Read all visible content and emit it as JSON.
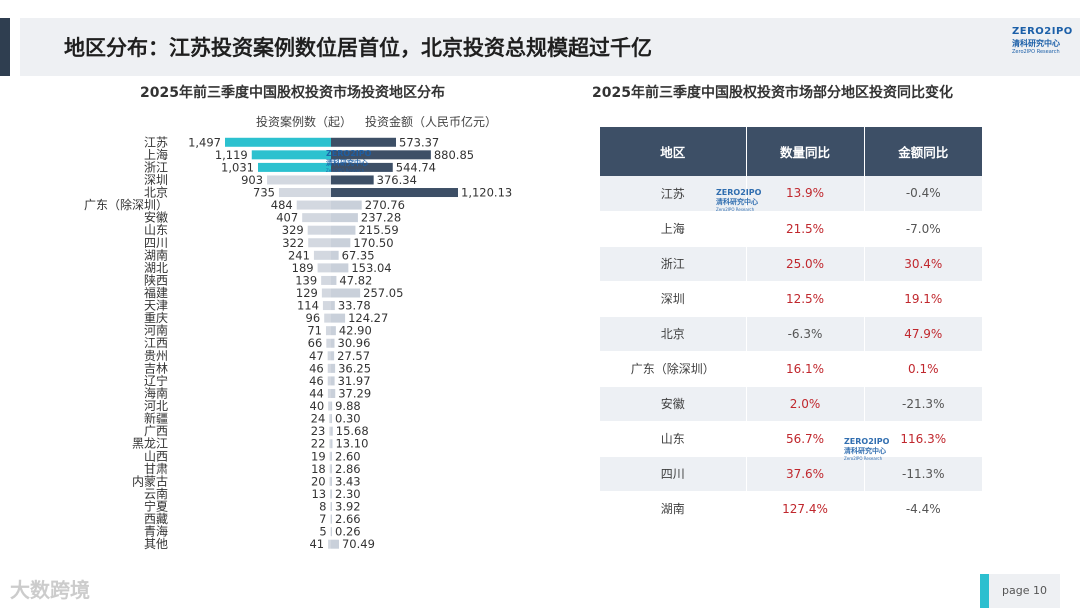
{
  "page": {
    "title": "地区分布：江苏投资案例数位居首位，北京投资总规模超过千亿",
    "number": "page 10",
    "footer_brand": "大数跨境"
  },
  "logo": {
    "line1": "ZERO2IPO",
    "line2": "清科研究中心",
    "line3": "Zero2IPO Research"
  },
  "left_chart": {
    "title": "2025年前三季度中国股权投资市场投资地区分布",
    "legend_count": "投资案例数（起）",
    "legend_amount": "投资金额（人民币亿元）"
  },
  "right_chart": {
    "title": "2025年前三季度中国股权投资市场部分地区投资同比变化",
    "headers": [
      "地区",
      "数量同比",
      "金额同比"
    ],
    "rows": [
      [
        "江苏",
        "13.9%",
        "-0.4%"
      ],
      [
        "上海",
        "21.5%",
        "-7.0%"
      ],
      [
        "浙江",
        "25.0%",
        "30.4%"
      ],
      [
        "深圳",
        "12.5%",
        "19.1%"
      ],
      [
        "北京",
        "-6.3%",
        "47.9%"
      ],
      [
        "广东（除深圳）",
        "16.1%",
        "0.1%"
      ],
      [
        "安徽",
        "2.0%",
        "-21.3%"
      ],
      [
        "山东",
        "56.7%",
        "116.3%"
      ],
      [
        "四川",
        "37.6%",
        "-11.3%"
      ],
      [
        "湖南",
        "127.4%",
        "-4.4%"
      ]
    ]
  },
  "chart_data": {
    "type": "bar",
    "title": "2025年前三季度中国股权投资市场投资地区分布",
    "categories": [
      "江苏",
      "上海",
      "浙江",
      "深圳",
      "北京",
      "广东（除深圳）",
      "安徽",
      "山东",
      "四川",
      "湖南",
      "湖北",
      "陕西",
      "福建",
      "天津",
      "重庆",
      "河南",
      "江西",
      "贵州",
      "吉林",
      "辽宁",
      "海南",
      "河北",
      "新疆",
      "广西",
      "黑龙江",
      "山西",
      "甘肃",
      "内蒙古",
      "云南",
      "宁夏",
      "西藏",
      "青海",
      "其他"
    ],
    "series": [
      {
        "name": "投资案例数（起）",
        "values": [
          1497,
          1119,
          1031,
          903,
          735,
          484,
          407,
          329,
          322,
          241,
          189,
          139,
          129,
          114,
          96,
          71,
          66,
          47,
          46,
          46,
          44,
          40,
          24,
          23,
          22,
          19,
          18,
          20,
          13,
          8,
          7,
          5,
          41
        ]
      },
      {
        "name": "投资金额（人民币亿元）",
        "values": [
          "573.37",
          "880.85",
          "544.74",
          "376.34",
          "1,120.13",
          "270.76",
          "237.28",
          "215.59",
          "170.50",
          "67.35",
          "153.04",
          "47.82",
          "257.05",
          "33.78",
          "124.27",
          "42.90",
          "30.96",
          "27.57",
          "36.25",
          "31.97",
          "37.29",
          "9.88",
          "0.30",
          "15.68",
          "13.10",
          "2.60",
          "2.86",
          "3.43",
          "2.30",
          "3.92",
          "2.66",
          "0.26",
          "70.49"
        ]
      }
    ],
    "count_labels": [
      "1,497",
      "1,119",
      "1,031",
      "903",
      "735",
      "484",
      "407",
      "329",
      "322",
      "241",
      "189",
      "139",
      "129",
      "114",
      "96",
      "71",
      "66",
      "47",
      "46",
      "46",
      "44",
      "40",
      "24",
      "23",
      "22",
      "19",
      "18",
      "20",
      "13",
      "8",
      "7",
      "5",
      "41"
    ],
    "colors": {
      "count_top": "#2cc1cf",
      "amount_top": "#3d4f66",
      "count_rest": "#d3d8e0",
      "amount_rest": "#c9d0da"
    },
    "highlight_count_top_n": 3,
    "highlight_amount_top_n": 5
  }
}
